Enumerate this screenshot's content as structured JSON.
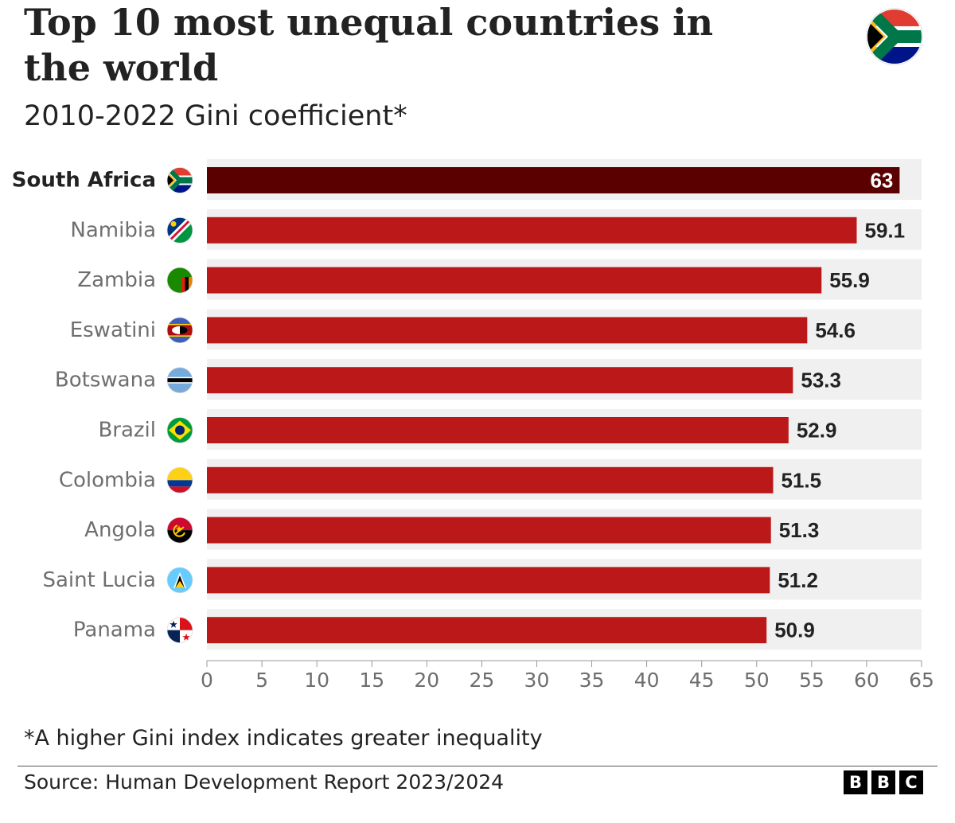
{
  "header": {
    "title": "Top 10 most unequal countries in the world",
    "subtitle": "2010-2022 Gini coefficient*",
    "corner_icon": "south-africa-flag-icon"
  },
  "chart_data": {
    "type": "bar",
    "orientation": "horizontal",
    "title": "Top 10 most unequal countries in the world",
    "subtitle": "2010-2022 Gini coefficient*",
    "categories": [
      "South Africa",
      "Namibia",
      "Zambia",
      "Eswatini",
      "Botswana",
      "Brazil",
      "Colombia",
      "Angola",
      "Saint Lucia",
      "Panama"
    ],
    "values": [
      63,
      59.1,
      55.9,
      54.6,
      53.3,
      52.9,
      51.5,
      51.3,
      51.2,
      50.9
    ],
    "value_labels": [
      "63",
      "59.1",
      "55.9",
      "54.6",
      "53.3",
      "52.9",
      "51.5",
      "51.3",
      "51.2",
      "50.9"
    ],
    "highlight_category": "South Africa",
    "xlim": [
      0,
      65
    ],
    "xticks": [
      0,
      5,
      10,
      15,
      20,
      25,
      30,
      35,
      40,
      45,
      50,
      55,
      60,
      65
    ],
    "xtick_labels": [
      "0",
      "5",
      "10",
      "15",
      "20",
      "25",
      "30",
      "35",
      "40",
      "45",
      "50",
      "55",
      "60",
      "65"
    ],
    "xlabel": "",
    "ylabel": "",
    "grid": false,
    "flag_icons": [
      "south-africa-flag-icon",
      "namibia-flag-icon",
      "zambia-flag-icon",
      "eswatini-flag-icon",
      "botswana-flag-icon",
      "brazil-flag-icon",
      "colombia-flag-icon",
      "angola-flag-icon",
      "saint-lucia-flag-icon",
      "panama-flag-icon"
    ],
    "colors": {
      "bar": "#bb1919",
      "highlight_bar": "#5a0000",
      "row_background": "#f0f0f0",
      "highlight_value_text": "#ffffff",
      "value_text": "#222222",
      "category_text": "#6e6e6e",
      "highlight_category_text": "#222222",
      "axis": "#999999"
    }
  },
  "footer": {
    "note": "*A higher Gini index indicates greater inequality",
    "source": "Source: Human Development Report 2023/2024",
    "logo_letters": [
      "B",
      "B",
      "C"
    ]
  }
}
